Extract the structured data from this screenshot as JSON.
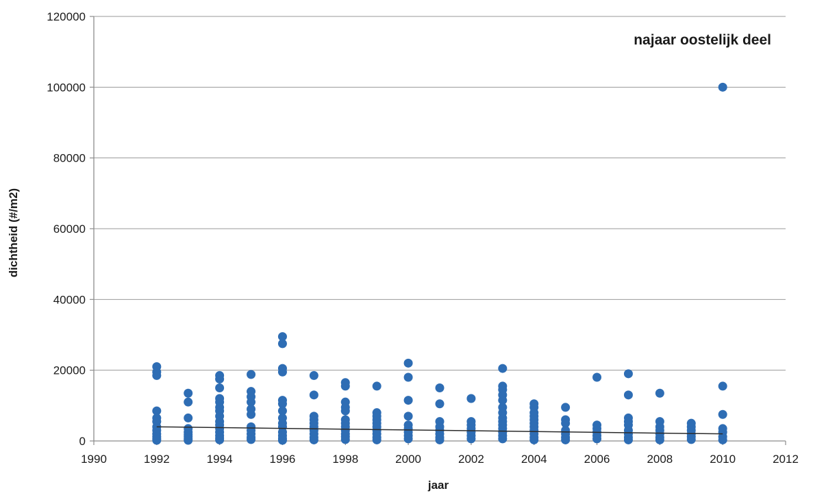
{
  "chart_data": {
    "type": "scatter",
    "title": "najaar oostelijk deel",
    "xlabel": "jaar",
    "ylabel": "dichtheid (#/m2)",
    "xlim": [
      1990,
      2012
    ],
    "ylim": [
      0,
      120000
    ],
    "x_ticks": [
      1990,
      1992,
      1994,
      1996,
      1998,
      2000,
      2002,
      2004,
      2006,
      2008,
      2010,
      2012
    ],
    "y_ticks": [
      0,
      20000,
      40000,
      60000,
      80000,
      100000,
      120000
    ],
    "grid": "horizontal",
    "legend": "none",
    "marker_color": "#2e6db4",
    "trendline_color": "#2b2b2b",
    "trendline": {
      "x": [
        1992,
        2010
      ],
      "y": [
        4000,
        2000
      ]
    },
    "points": [
      {
        "x": 1992,
        "y": [
          21000,
          19500,
          18500,
          8500,
          6500,
          5500,
          4000,
          3000,
          2000,
          1200,
          600,
          200
        ]
      },
      {
        "x": 1993,
        "y": [
          13500,
          11000,
          6500,
          3500,
          2500,
          1800,
          1200,
          600,
          200
        ]
      },
      {
        "x": 1994,
        "y": [
          18500,
          17500,
          15000,
          12000,
          11000,
          9500,
          8500,
          7000,
          5500,
          4500,
          3500,
          2500,
          1500,
          800,
          300
        ]
      },
      {
        "x": 1995,
        "y": [
          18800,
          14000,
          12500,
          11000,
          9000,
          7500,
          4000,
          3000,
          2000,
          1000,
          400
        ]
      },
      {
        "x": 1996,
        "y": [
          29500,
          27500,
          20500,
          19500,
          11500,
          10500,
          8500,
          6500,
          5000,
          4000,
          2500,
          1500,
          700,
          200
        ]
      },
      {
        "x": 1997,
        "y": [
          18500,
          13000,
          7000,
          6000,
          5000,
          4000,
          3000,
          2000,
          1000,
          300
        ]
      },
      {
        "x": 1998,
        "y": [
          16500,
          15500,
          11000,
          9500,
          8500,
          6000,
          5000,
          4000,
          3000,
          2000,
          1200,
          400
        ]
      },
      {
        "x": 1999,
        "y": [
          15500,
          8000,
          7000,
          6000,
          5000,
          4000,
          3000,
          2000,
          1000,
          300
        ]
      },
      {
        "x": 2000,
        "y": [
          22000,
          18000,
          11500,
          7000,
          4500,
          3500,
          2500,
          1500,
          600
        ]
      },
      {
        "x": 2001,
        "y": [
          15000,
          10500,
          5500,
          4000,
          3000,
          2000,
          1000,
          300
        ]
      },
      {
        "x": 2002,
        "y": [
          12000,
          5500,
          4500,
          3500,
          2500,
          1500,
          600
        ]
      },
      {
        "x": 2003,
        "y": [
          20500,
          15500,
          14500,
          13000,
          11500,
          9500,
          8000,
          6500,
          5500,
          4500,
          3500,
          2500,
          1500,
          600
        ]
      },
      {
        "x": 2004,
        "y": [
          10500,
          9500,
          8000,
          7000,
          6000,
          5000,
          4000,
          3000,
          2000,
          1000,
          300
        ]
      },
      {
        "x": 2005,
        "y": [
          9500,
          6000,
          5000,
          3000,
          2000,
          1000,
          300
        ]
      },
      {
        "x": 2006,
        "y": [
          18000,
          4500,
          3500,
          2500,
          1500,
          600
        ]
      },
      {
        "x": 2007,
        "y": [
          19000,
          13000,
          6500,
          5500,
          4500,
          3000,
          2000,
          1000,
          300
        ]
      },
      {
        "x": 2008,
        "y": [
          13500,
          5500,
          4000,
          3000,
          2000,
          1000,
          300
        ]
      },
      {
        "x": 2009,
        "y": [
          5000,
          4000,
          3000,
          2000,
          1200,
          400
        ]
      },
      {
        "x": 2010,
        "y": [
          100000,
          15500,
          7500,
          3500,
          2500,
          1200,
          300
        ]
      }
    ]
  }
}
